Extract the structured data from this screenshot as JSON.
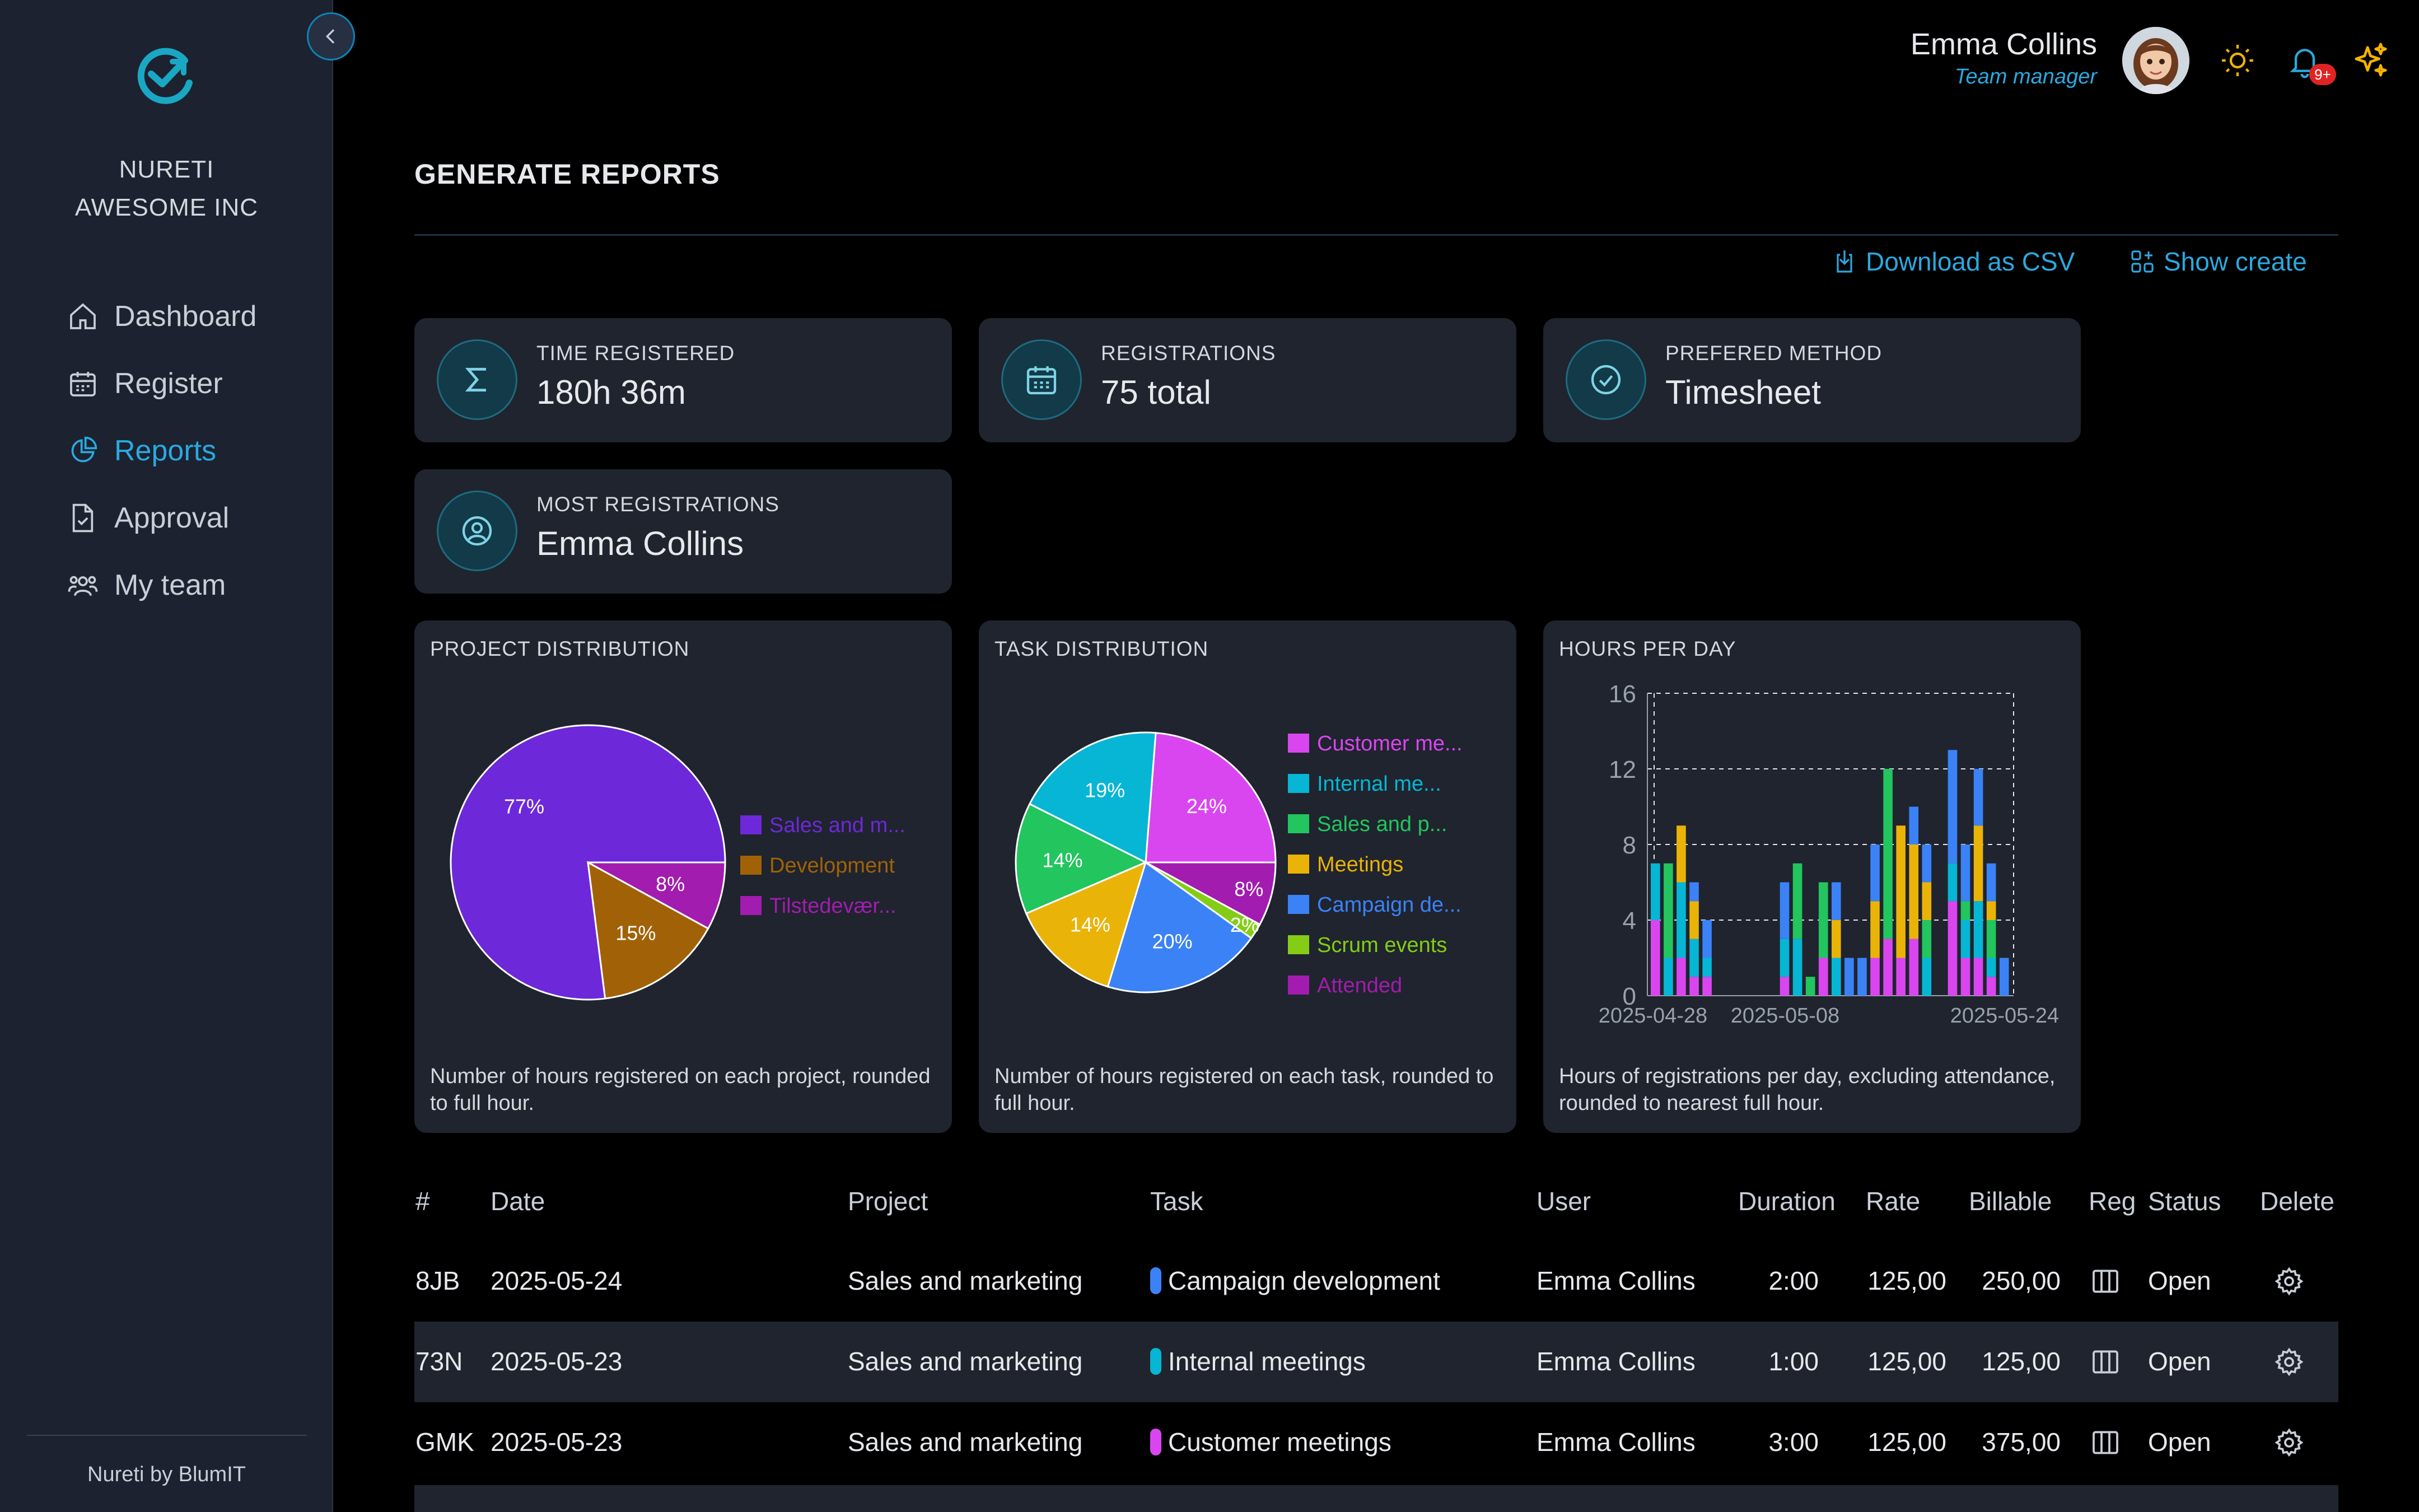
{
  "sidebar": {
    "org_name": "NURETI",
    "company": "AWESOME INC",
    "items": [
      {
        "label": "Dashboard",
        "icon": "home-icon",
        "active": false
      },
      {
        "label": "Register",
        "icon": "calendar-icon",
        "active": false
      },
      {
        "label": "Reports",
        "icon": "pie-chart-icon",
        "active": true
      },
      {
        "label": "Approval",
        "icon": "document-check-icon",
        "active": false
      },
      {
        "label": "My team",
        "icon": "team-icon",
        "active": false
      }
    ],
    "footer": "Nureti by BlumIT"
  },
  "header": {
    "user_name": "Emma Collins",
    "user_role": "Team manager",
    "notification_badge": "9+"
  },
  "page": {
    "title": "GENERATE REPORTS",
    "download_label": "Download as CSV",
    "show_create_label": "Show create"
  },
  "stats": [
    {
      "label": "TIME REGISTERED",
      "value": "180h 36m",
      "icon": "sigma-icon"
    },
    {
      "label": "REGISTRATIONS",
      "value": "75 total",
      "icon": "calendar-icon"
    },
    {
      "label": "PREFERED METHOD",
      "value": "Timesheet",
      "icon": "check-circle-icon"
    },
    {
      "label": "MOST REGISTRATIONS",
      "value": "Emma Collins",
      "icon": "user-circle-icon"
    }
  ],
  "charts": {
    "project": {
      "title": "PROJECT DISTRIBUTION",
      "description": "Number of hours registered on each project, rounded to full hour."
    },
    "task": {
      "title": "TASK DISTRIBUTION",
      "description": "Number of hours registered on each task, rounded to full hour."
    },
    "hours": {
      "title": "HOURS PER DAY",
      "description": "Hours of registrations per day, excluding attendance, rounded to nearest full hour."
    }
  },
  "chart_data": [
    {
      "type": "pie",
      "title": "PROJECT DISTRIBUTION",
      "slices": [
        {
          "label": "Sales and m...",
          "value": 77,
          "color": "#6d28d9"
        },
        {
          "label": "Development",
          "value": 15,
          "color": "#a16207"
        },
        {
          "label": "Tilstedevær...",
          "value": 8,
          "color": "#a21caf"
        }
      ]
    },
    {
      "type": "pie",
      "title": "TASK DISTRIBUTION",
      "slices": [
        {
          "label": "Customer me...",
          "value": 24,
          "color": "#d946ef"
        },
        {
          "label": "Internal me...",
          "value": 19,
          "color": "#06b6d4"
        },
        {
          "label": "Sales and p...",
          "value": 14,
          "color": "#22c55e"
        },
        {
          "label": "Meetings",
          "value": 14,
          "color": "#eab308"
        },
        {
          "label": "Campaign de...",
          "value": 20,
          "color": "#3b82f6"
        },
        {
          "label": "Scrum events",
          "value": 2,
          "color": "#84cc16"
        },
        {
          "label": "Attended",
          "value": 8,
          "color": "#a21caf"
        }
      ]
    },
    {
      "type": "bar",
      "stacked": true,
      "title": "HOURS PER DAY",
      "ylim": [
        0,
        16
      ],
      "yticks": [
        0,
        4,
        8,
        12,
        16
      ],
      "xtick_labels": [
        "2025-04-28",
        "2025-05-08",
        "2025-05-24"
      ],
      "series_colors": [
        "#d946ef",
        "#06b6d4",
        "#22c55e",
        "#eab308",
        "#3b82f6"
      ],
      "bars": [
        [
          4,
          3,
          0,
          0,
          0
        ],
        [
          0,
          2,
          5,
          0,
          0
        ],
        [
          2,
          4,
          0,
          3,
          0
        ],
        [
          1,
          2,
          0,
          2,
          1
        ],
        [
          1,
          1,
          0,
          0,
          2
        ],
        [
          0,
          0,
          0,
          0,
          0
        ],
        [
          0,
          0,
          0,
          0,
          0
        ],
        [
          0,
          0,
          0,
          0,
          0
        ],
        [
          0,
          0,
          0,
          0,
          0
        ],
        [
          0,
          0,
          0,
          0,
          0
        ],
        [
          1,
          2,
          0,
          0,
          3
        ],
        [
          0,
          3,
          4,
          0,
          0
        ],
        [
          0,
          0,
          1,
          0,
          0
        ],
        [
          2,
          0,
          4,
          0,
          0
        ],
        [
          0,
          2,
          0,
          2,
          2
        ],
        [
          0,
          0,
          0,
          0,
          2
        ],
        [
          0,
          0,
          0,
          0,
          2
        ],
        [
          2,
          0,
          0,
          3,
          3
        ],
        [
          3,
          0,
          9,
          0,
          0
        ],
        [
          2,
          0,
          0,
          7,
          0
        ],
        [
          3,
          0,
          0,
          5,
          2
        ],
        [
          0,
          2,
          2,
          2,
          2
        ],
        [
          0,
          0,
          0,
          0,
          0
        ],
        [
          5,
          2,
          0,
          0,
          6
        ],
        [
          2,
          2,
          1,
          0,
          3
        ],
        [
          2,
          3,
          0,
          4,
          3
        ],
        [
          1,
          1,
          2,
          1,
          2
        ],
        [
          0,
          0,
          0,
          0,
          2
        ]
      ]
    }
  ],
  "table": {
    "headers": [
      "#",
      "Date",
      "Project",
      "Task",
      "User",
      "Duration",
      "Rate",
      "Billable",
      "Reg",
      "Status",
      "Delete"
    ],
    "rows": [
      {
        "id": "8JB",
        "date": "2025-05-24",
        "project": "Sales and marketing",
        "task": "Campaign development",
        "task_color": "#3b82f6",
        "user": "Emma Collins",
        "duration": "2:00",
        "rate": "125,00",
        "billable": "250,00",
        "status": "Open"
      },
      {
        "id": "73N",
        "date": "2025-05-23",
        "project": "Sales and marketing",
        "task": "Internal meetings",
        "task_color": "#06b6d4",
        "user": "Emma Collins",
        "duration": "1:00",
        "rate": "125,00",
        "billable": "125,00",
        "status": "Open"
      },
      {
        "id": "GMK",
        "date": "2025-05-23",
        "project": "Sales and marketing",
        "task": "Customer meetings",
        "task_color": "#d946ef",
        "user": "Emma Collins",
        "duration": "3:00",
        "rate": "125,00",
        "billable": "375,00",
        "status": "Open"
      }
    ]
  }
}
